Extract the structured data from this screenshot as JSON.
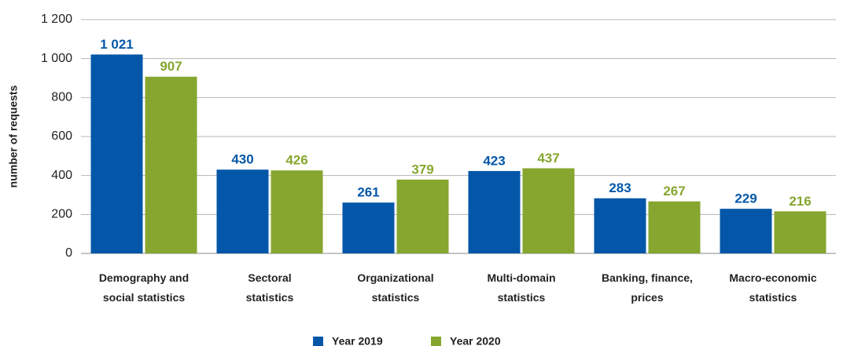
{
  "chart_data": {
    "type": "bar",
    "y_label": "number of requests",
    "categories": [
      "Demography and\nsocial statistics",
      "Sectoral\nstatistics",
      "Organizational\nstatistics",
      "Multi-domain\nstatistics",
      "Banking, finance,\nprices",
      "Macro-economic\nstatistics"
    ],
    "series": [
      {
        "name": "Year 2019",
        "color": "#0457a8",
        "values": [
          1021,
          430,
          261,
          423,
          283,
          229
        ],
        "value_labels": [
          "1 021",
          "430",
          "261",
          "423",
          "283",
          "229"
        ]
      },
      {
        "name": "Year 2020",
        "color": "#86a62f",
        "values": [
          907,
          426,
          379,
          437,
          267,
          216
        ],
        "value_labels": [
          "907",
          "426",
          "379",
          "437",
          "267",
          "216"
        ]
      }
    ],
    "ylim": [
      0,
      1200
    ],
    "yticks": [
      0,
      200,
      400,
      600,
      800,
      {
        "value": 1000,
        "label": "1 000"
      },
      {
        "value": 1200,
        "label": "1 200"
      }
    ],
    "grid": true,
    "legend": "bottom"
  }
}
